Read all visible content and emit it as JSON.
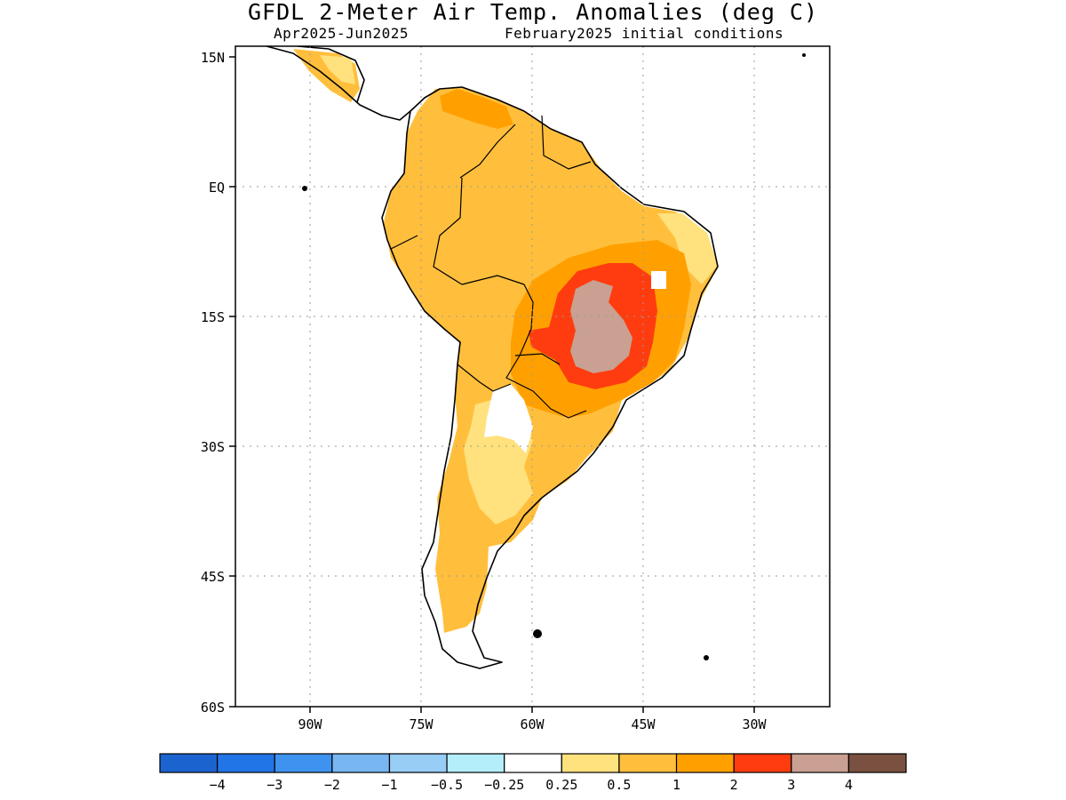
{
  "title": "GFDL 2-Meter Air Temp. Anomalies (deg C)",
  "subtitle_left": "Apr2025-Jun2025",
  "subtitle_right": "February2025 initial conditions",
  "lat_labels": [
    "15N",
    "EQ",
    "15S",
    "30S",
    "45S",
    "60S"
  ],
  "lon_labels": [
    "90W",
    "75W",
    "60W",
    "45W",
    "30W"
  ],
  "colorbar": {
    "colors": [
      "#1b63cf",
      "#2275e6",
      "#3f93f0",
      "#78b6f2",
      "#98cdf5",
      "#b4eefa",
      "#ffffff",
      "#ffe17d",
      "#ffbf3c",
      "#ffa000",
      "#ff3c0f",
      "#c9a092",
      "#7a5040"
    ],
    "labels": [
      "-4",
      "-3",
      "-2",
      "-1",
      "-0.5",
      "-0.25",
      "0.25",
      "0.5",
      "1",
      "2",
      "3",
      "4"
    ]
  }
}
